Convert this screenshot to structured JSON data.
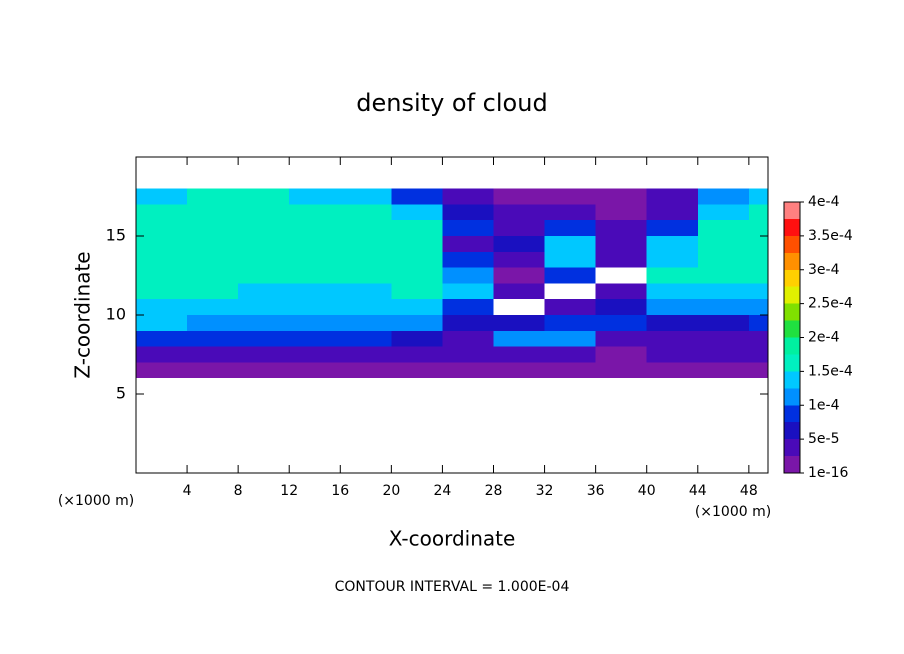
{
  "chart_data": {
    "type": "contour",
    "title": "density of cloud",
    "x_label": "X-coordinate",
    "y_label": "Z-coordinate",
    "x_unit": "(×1000 m)",
    "y_unit": "(×1000 m)",
    "footnote": "CONTOUR INTERVAL = 1.000E-04",
    "xlim": [
      0,
      49.5
    ],
    "xticks": [
      4,
      8,
      12,
      16,
      20,
      24,
      28,
      32,
      36,
      40,
      44,
      48
    ],
    "ylim": [
      0,
      20
    ],
    "yticks": [
      5,
      10,
      15
    ],
    "x": [
      2,
      6,
      10,
      14,
      18,
      22,
      26,
      30,
      34,
      38,
      42,
      46,
      50
    ],
    "y": [
      17.5,
      16.5,
      15.5,
      14.5,
      13.5,
      12.5,
      11.5,
      10.5,
      9.5,
      8.5,
      7.5,
      6.5
    ],
    "z": [
      [
        0.00015,
        0.00016,
        0.00016,
        0.00015,
        0.00013,
        8e-05,
        3e-05,
        2e-05,
        2e-05,
        1e-05,
        3e-05,
        0.00012,
        0.00014
      ],
      [
        0.00016,
        0.00017,
        0.00017,
        0.00017,
        0.00016,
        0.00015,
        6e-05,
        3e-05,
        4e-05,
        2e-05,
        5e-05,
        0.00015,
        0.00016
      ],
      [
        0.00017,
        0.00017,
        0.00017,
        0.00017,
        0.00017,
        0.00016,
        8e-05,
        5e-05,
        9e-05,
        3e-05,
        9e-05,
        0.00016,
        0.00017
      ],
      [
        0.00017,
        0.00017,
        0.00017,
        0.00017,
        0.00017,
        0.00016,
        5e-05,
        6e-05,
        0.00013,
        4e-05,
        0.00013,
        0.00017,
        0.00017
      ],
      [
        0.00017,
        0.00017,
        0.00017,
        0.00017,
        0.00017,
        0.00017,
        9e-05,
        4e-05,
        0.00015,
        3e-05,
        0.00015,
        0.00017,
        0.00017
      ],
      [
        0.00017,
        0.00017,
        0.00017,
        0.00016,
        0.00016,
        0.00017,
        0.00011,
        2e-05,
        0.0001,
        null,
        0.00016,
        0.00016,
        0.00016
      ],
      [
        0.00016,
        0.00016,
        0.00015,
        0.00015,
        0.00014,
        0.00016,
        0.00014,
        5e-05,
        null,
        4e-05,
        0.00015,
        0.00015,
        0.00014
      ],
      [
        0.00015,
        0.00014,
        0.00014,
        0.00013,
        0.00013,
        0.00013,
        9e-05,
        null,
        5e-05,
        6e-05,
        0.00011,
        0.00012,
        0.00012
      ],
      [
        0.00013,
        0.00012,
        0.00012,
        0.00011,
        0.00012,
        0.00011,
        7e-05,
        6e-05,
        0.0001,
        8e-05,
        6e-05,
        7e-05,
        8e-05
      ],
      [
        9e-05,
        9e-05,
        0.0001,
        0.0001,
        8e-05,
        6e-05,
        5e-05,
        0.00011,
        0.00011,
        5e-05,
        4e-05,
        4e-05,
        5e-05
      ],
      [
        5e-05,
        5e-05,
        5e-05,
        4e-05,
        4e-05,
        3e-05,
        3e-05,
        4e-05,
        3e-05,
        2e-05,
        3e-05,
        3e-05,
        4e-05
      ],
      [
        1e-05,
        1e-05,
        1e-05,
        1e-05,
        1e-05,
        1e-05,
        1e-05,
        1e-05,
        1e-05,
        1e-05,
        1e-05,
        1e-05,
        1e-05
      ]
    ],
    "colorbar": {
      "zlim": [
        1e-16,
        0.0004
      ],
      "colors": [
        "#7a16a8",
        "#4a0ab8",
        "#1a10c0",
        "#0030e0",
        "#0090ff",
        "#00c8ff",
        "#00f0c0",
        "#00f0a0",
        "#20e040",
        "#80e000",
        "#e0f000",
        "#ffd000",
        "#ff9000",
        "#ff5000",
        "#ff1010",
        "#ff8080"
      ],
      "ticks": [
        1e-16,
        {
          "value": 5e-05,
          "label": "5e-5"
        },
        {
          "value": 0.0001,
          "label": "1e-4"
        },
        {
          "value": 0.00015,
          "label": "1.5e-4"
        },
        {
          "value": 0.0002,
          "label": "2e-4"
        },
        {
          "value": 0.00025,
          "label": "2.5e-4"
        },
        {
          "value": 0.0003,
          "label": "3e-4"
        },
        {
          "value": 0.00035,
          "label": "3.5e-4"
        },
        {
          "value": 0.0004,
          "label": "4e-4"
        }
      ]
    }
  }
}
